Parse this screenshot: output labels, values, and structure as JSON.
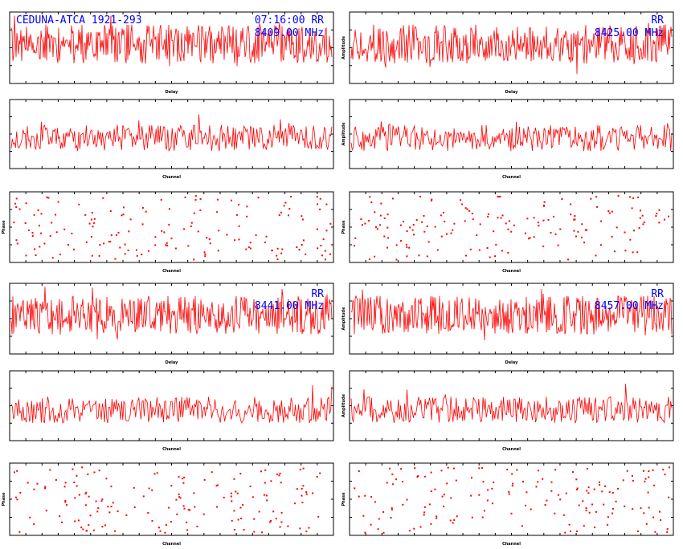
{
  "colors": {
    "trace": "#ff0000",
    "annotation": "#0000ff",
    "frame": "#000000",
    "background": "#ffffff"
  },
  "annotations": {
    "source_title": "CEDUNA-ATCA 1921-293",
    "time_pol": "07:16:00  RR",
    "pol_rr": "RR",
    "freq_1": "8409.00 MHz",
    "freq_2": "8425.00 MHz",
    "freq_3": "8441.00 MHz",
    "freq_4": "8457.00 MHz"
  },
  "chart_data": [
    {
      "id": "delay-p1",
      "type": "line",
      "xlabel": "Delay",
      "ylabel": "",
      "xlim": [
        -300,
        300
      ],
      "ylim": [
        0,
        5
      ],
      "seed": 11,
      "points": 400
    },
    {
      "id": "delay-p2",
      "type": "line",
      "xlabel": "Delay",
      "ylabel": "Amplitude",
      "xlim": [
        -300,
        300
      ],
      "ylim": [
        0,
        5
      ],
      "seed": 12,
      "points": 400
    },
    {
      "id": "channel-p1",
      "type": "line",
      "xlabel": "Channel",
      "ylabel": "",
      "xlim": [
        0,
        512
      ],
      "ylim": [
        0,
        5
      ],
      "seed": 21,
      "points": 300
    },
    {
      "id": "channel-p2",
      "type": "line",
      "xlabel": "Channel",
      "ylabel": "Amplitude",
      "xlim": [
        0,
        512
      ],
      "ylim": [
        0,
        5
      ],
      "seed": 22,
      "points": 300
    },
    {
      "id": "phase-p1",
      "type": "scatter",
      "xlabel": "Channel",
      "ylabel": "Phase",
      "xlim": [
        0,
        512
      ],
      "ylim": [
        -180,
        180
      ],
      "seed": 31,
      "points": 160
    },
    {
      "id": "phase-p2",
      "type": "scatter",
      "xlabel": "Channel",
      "ylabel": "Phase",
      "xlim": [
        0,
        512
      ],
      "ylim": [
        -180,
        180
      ],
      "seed": 32,
      "points": 160
    },
    {
      "id": "delay-p3",
      "type": "line",
      "xlabel": "Delay",
      "ylabel": "",
      "xlim": [
        -300,
        300
      ],
      "ylim": [
        0,
        5
      ],
      "seed": 13,
      "points": 400
    },
    {
      "id": "delay-p4",
      "type": "line",
      "xlabel": "Delay",
      "ylabel": "Amplitude",
      "xlim": [
        -300,
        300
      ],
      "ylim": [
        0,
        5
      ],
      "seed": 14,
      "points": 400
    },
    {
      "id": "channel-p3",
      "type": "line",
      "xlabel": "Channel",
      "ylabel": "",
      "xlim": [
        0,
        512
      ],
      "ylim": [
        0,
        5
      ],
      "seed": 23,
      "points": 300
    },
    {
      "id": "channel-p4",
      "type": "line",
      "xlabel": "Channel",
      "ylabel": "Amplitude",
      "xlim": [
        0,
        512
      ],
      "ylim": [
        0,
        5
      ],
      "seed": 24,
      "points": 300
    },
    {
      "id": "phase-p3",
      "type": "scatter",
      "xlabel": "Channel",
      "ylabel": "Phase",
      "xlim": [
        0,
        512
      ],
      "ylim": [
        -180,
        180
      ],
      "seed": 33,
      "points": 160
    },
    {
      "id": "phase-p4",
      "type": "scatter",
      "xlabel": "Channel",
      "ylabel": "Phase",
      "xlim": [
        0,
        512
      ],
      "ylim": [
        -180,
        180
      ],
      "seed": 34,
      "points": 160
    }
  ]
}
